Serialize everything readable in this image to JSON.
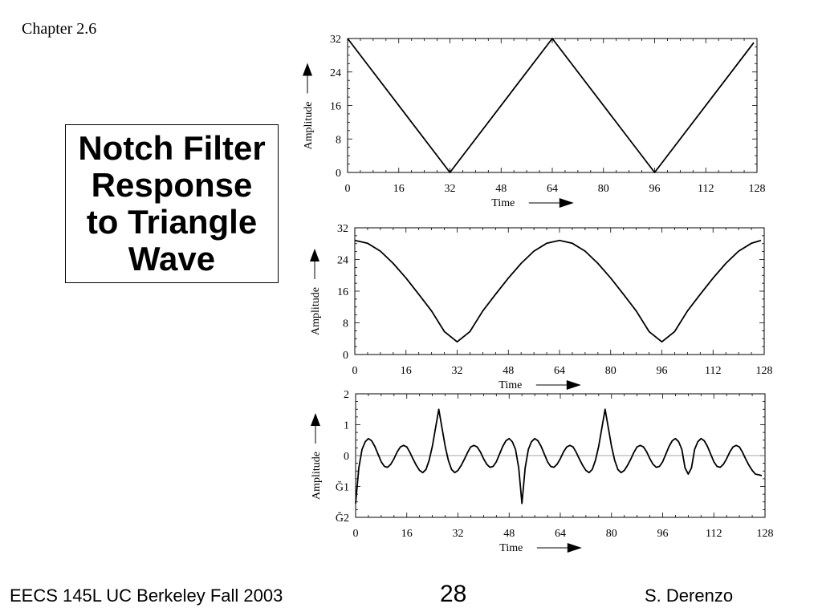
{
  "slide": {
    "chapter": "Chapter 2.6",
    "title": "Notch Filter\nResponse\nto Triangle\nWave",
    "footer_left": "EECS 145L UC Berkeley Fall 2003",
    "page_number": "28",
    "footer_right": "S. Derenzo"
  },
  "chart_data": [
    {
      "type": "line",
      "title": "",
      "xlabel": "Time",
      "ylabel": "Amplitude",
      "xlim": [
        0,
        128
      ],
      "ylim": [
        0,
        32
      ],
      "xticks": [
        0,
        16,
        32,
        48,
        64,
        80,
        96,
        112,
        128
      ],
      "yticks": [
        0,
        8,
        16,
        24,
        32
      ],
      "ytick_labels": [
        "0",
        "8",
        "16",
        "24",
        "32"
      ],
      "grid": false,
      "series": [
        {
          "x": [
            0,
            32,
            64,
            96,
            127
          ],
          "y": [
            32,
            0,
            32,
            0,
            31
          ]
        }
      ]
    },
    {
      "type": "line",
      "title": "",
      "xlabel": "Time",
      "ylabel": "Amplitude",
      "xlim": [
        0,
        128
      ],
      "ylim": [
        0,
        32
      ],
      "xticks": [
        0,
        16,
        32,
        48,
        64,
        80,
        96,
        112,
        128
      ],
      "yticks": [
        0,
        8,
        16,
        24,
        32
      ],
      "ytick_labels": [
        "0",
        "8",
        "16",
        "24",
        "32"
      ],
      "grid": false,
      "series": [
        {
          "x": [
            0,
            4,
            8,
            12,
            16,
            20,
            24,
            28,
            32,
            36,
            40,
            44,
            48,
            52,
            56,
            60,
            64,
            68,
            72,
            76,
            80,
            84,
            88,
            92,
            96,
            100,
            104,
            108,
            112,
            116,
            120,
            124,
            127
          ],
          "y": [
            28.8,
            28.1,
            26.1,
            23.0,
            19.3,
            15.2,
            11.0,
            5.8,
            3.2,
            5.8,
            11.0,
            15.2,
            19.3,
            23.0,
            26.1,
            28.1,
            28.8,
            28.1,
            26.1,
            23.0,
            19.3,
            15.2,
            11.0,
            5.8,
            3.2,
            5.8,
            11.0,
            15.2,
            19.3,
            23.0,
            26.1,
            28.1,
            28.8
          ]
        }
      ]
    },
    {
      "type": "line",
      "title": "",
      "xlabel": "Time",
      "ylabel": "Amplitude",
      "xlim": [
        0,
        128
      ],
      "ylim": [
        -2,
        2
      ],
      "xticks": [
        0,
        16,
        32,
        48,
        64,
        80,
        96,
        112,
        128
      ],
      "yticks": [
        2,
        1,
        0,
        -1,
        -2
      ],
      "ytick_labels": [
        "2",
        "1",
        "0",
        "Ğ1",
        "Ğ2"
      ],
      "grid": false,
      "zero_line": true,
      "series": [
        {
          "x": [
            0,
            1,
            2,
            3,
            4,
            5,
            6,
            7,
            8,
            9,
            10,
            11,
            12,
            13,
            14,
            15,
            16,
            17,
            18,
            19,
            20,
            21,
            22,
            23,
            24,
            25,
            26,
            27,
            28,
            29,
            30,
            31,
            32,
            33,
            34,
            35,
            36,
            37,
            38,
            39,
            40,
            41,
            42,
            43,
            44,
            45,
            46,
            47,
            48,
            49,
            50,
            51,
            52,
            53,
            54,
            55,
            56,
            57,
            58,
            59,
            60,
            61,
            62,
            63,
            64,
            65,
            66,
            67,
            68,
            69,
            70,
            71,
            72,
            73,
            74,
            75,
            76,
            77,
            78,
            79,
            80,
            81,
            82,
            83,
            84,
            85,
            86,
            87,
            88,
            89,
            90,
            91,
            92,
            93,
            94,
            95,
            96,
            97,
            98,
            99,
            100,
            101,
            102,
            103,
            104,
            105,
            106,
            107,
            108,
            109,
            110,
            111,
            112,
            113,
            114,
            115,
            116,
            117,
            118,
            119,
            120,
            121,
            122,
            123,
            124,
            125,
            126,
            127
          ],
          "y": [
            -1.55,
            -0.4,
            0.2,
            0.45,
            0.55,
            0.48,
            0.3,
            0.05,
            -0.2,
            -0.35,
            -0.38,
            -0.28,
            -0.1,
            0.12,
            0.28,
            0.33,
            0.28,
            0.1,
            -0.12,
            -0.32,
            -0.48,
            -0.55,
            -0.45,
            -0.15,
            0.3,
            0.9,
            1.5,
            0.9,
            0.3,
            -0.15,
            -0.45,
            -0.55,
            -0.48,
            -0.32,
            -0.12,
            0.1,
            0.28,
            0.33,
            0.28,
            0.12,
            -0.1,
            -0.28,
            -0.38,
            -0.35,
            -0.2,
            0.05,
            0.3,
            0.48,
            0.55,
            0.45,
            0.2,
            -0.4,
            -1.55,
            -0.4,
            0.2,
            0.45,
            0.55,
            0.48,
            0.3,
            0.05,
            -0.2,
            -0.35,
            -0.38,
            -0.28,
            -0.1,
            0.12,
            0.28,
            0.33,
            0.28,
            0.1,
            -0.12,
            -0.32,
            -0.48,
            -0.55,
            -0.45,
            -0.15,
            0.3,
            0.9,
            1.5,
            0.9,
            0.3,
            -0.15,
            -0.45,
            -0.55,
            -0.48,
            -0.32,
            -0.12,
            0.1,
            0.28,
            0.33,
            0.28,
            0.12,
            -0.1,
            -0.28,
            -0.38,
            -0.35,
            -0.2,
            0.05,
            0.3,
            0.48,
            0.55,
            0.45,
            0.2,
            -0.4,
            -0.6,
            -0.4,
            0.2,
            0.45,
            0.55,
            0.48,
            0.3,
            0.05,
            -0.2,
            -0.35,
            -0.38,
            -0.28,
            -0.1,
            0.12,
            0.28,
            0.33,
            0.28,
            0.1,
            -0.12,
            -0.32,
            -0.48,
            -0.6,
            -0.62,
            -0.65
          ]
        }
      ]
    }
  ]
}
